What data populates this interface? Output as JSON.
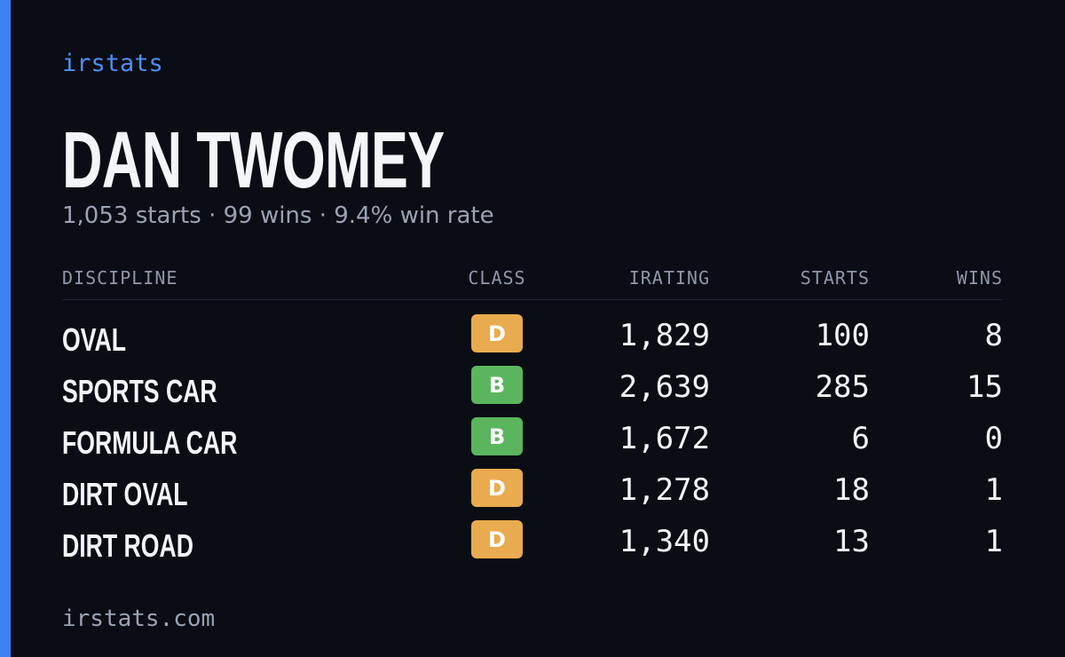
{
  "brand": "irstats",
  "profile": {
    "name": "DAN TWOMEY",
    "summary": "1,053 starts · 99 wins · 9.4% win rate"
  },
  "table": {
    "headers": [
      "DISCIPLINE",
      "CLASS",
      "IRATING",
      "STARTS",
      "WINS"
    ],
    "rows": [
      {
        "discipline": "OVAL",
        "class": "D",
        "badge_color": "#e9ab4f",
        "irating": "1,829",
        "starts": 100,
        "wins": 8
      },
      {
        "discipline": "SPORTS CAR",
        "class": "B",
        "badge_color": "#5bb55e",
        "irating": "2,639",
        "starts": 285,
        "wins": 15
      },
      {
        "discipline": "FORMULA CAR",
        "class": "B",
        "badge_color": "#5bb55e",
        "irating": "1,672",
        "starts": 6,
        "wins": 0
      },
      {
        "discipline": "DIRT OVAL",
        "class": "D",
        "badge_color": "#e9ab4f",
        "irating": "1,278",
        "starts": 18,
        "wins": 1
      },
      {
        "discipline": "DIRT ROAD",
        "class": "D",
        "badge_color": "#e9ab4f",
        "irating": "1,340",
        "starts": 13,
        "wins": 1
      }
    ]
  },
  "footer": "irstats.com"
}
